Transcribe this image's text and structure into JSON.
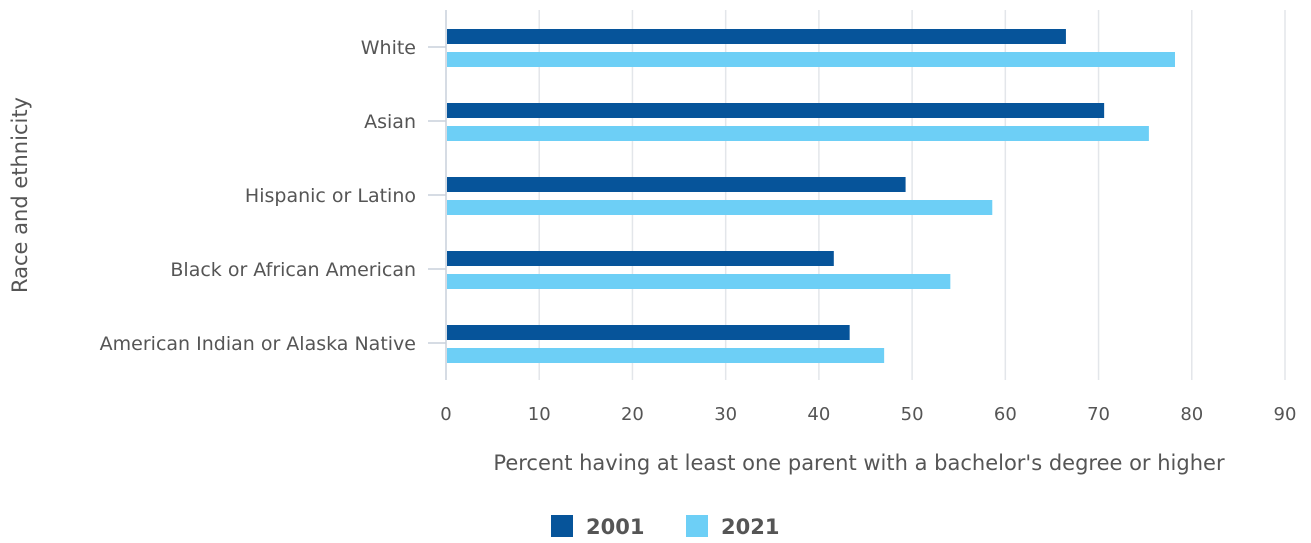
{
  "chart_data": {
    "type": "bar",
    "orientation": "horizontal",
    "categories": [
      "White",
      "Asian",
      "Hispanic or Latino",
      "Black or African American",
      "American Indian or Alaska Native"
    ],
    "series": [
      {
        "name": "2001",
        "values": [
          66.5,
          70.6,
          49.3,
          41.6,
          43.3
        ],
        "color": "#06549a"
      },
      {
        "name": "2021",
        "values": [
          78.2,
          75.4,
          58.6,
          54.1,
          47.0
        ],
        "color": "#6dcff6"
      }
    ],
    "xlabel": "Percent having at least one parent with a bachelor's degree or higher",
    "ylabel": "Race and ethnicity",
    "xlim": [
      0,
      90
    ],
    "xticks": [
      "0",
      "10",
      "20",
      "30",
      "40",
      "50",
      "60",
      "70",
      "80",
      "90"
    ],
    "grid": true,
    "legend_position": "bottom-center"
  }
}
